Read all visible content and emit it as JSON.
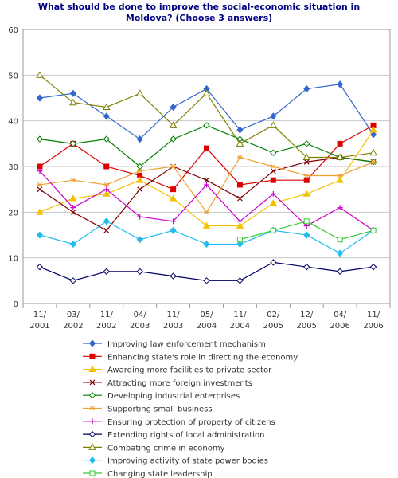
{
  "chart_data": {
    "type": "line",
    "title_line1": "What should be done to improve the social-economic situation in",
    "title_line2": "Moldova? (Choose 3 answers)",
    "xlabel": "",
    "ylabel": "",
    "ylim": [
      0,
      60
    ],
    "yticks": [
      0,
      10,
      20,
      30,
      40,
      50,
      60
    ],
    "grid": true,
    "legend_position": "bottom",
    "categories": [
      [
        "11/",
        "2001"
      ],
      [
        "03/",
        "2002"
      ],
      [
        "11/",
        "2002"
      ],
      [
        "04/",
        "2003"
      ],
      [
        "11/",
        "2003"
      ],
      [
        "05/",
        "2004"
      ],
      [
        "11/",
        "2004"
      ],
      [
        "02/",
        "2005"
      ],
      [
        "12/",
        "2005"
      ],
      [
        "04/",
        "2006"
      ],
      [
        "11/",
        "2006"
      ]
    ],
    "series": [
      {
        "name": "Improving law enforcement mechanism",
        "color": "#3366CC",
        "marker": "diamond-filled",
        "values": [
          45,
          46,
          41,
          36,
          43,
          47,
          38,
          41,
          47,
          48,
          37
        ]
      },
      {
        "name": "Enhancing state's role in directing the economy",
        "color": "#DD0000",
        "marker": "square-filled",
        "values": [
          30,
          35,
          30,
          28,
          25,
          34,
          26,
          27,
          27,
          35,
          39
        ]
      },
      {
        "name": "Awarding more facilities to private sector",
        "color": "#F2C200",
        "marker": "triangle-filled",
        "values": [
          20,
          23,
          24,
          27,
          23,
          17,
          17,
          22,
          24,
          27,
          38
        ]
      },
      {
        "name": "Attracting more foreign investments",
        "color": "#800000",
        "marker": "x",
        "values": [
          25,
          20,
          16,
          25,
          30,
          27,
          23,
          29,
          31,
          32,
          31
        ]
      },
      {
        "name": "Developing industrial enterprises",
        "color": "#008000",
        "marker": "diamond-open",
        "values": [
          36,
          35,
          36,
          30,
          36,
          39,
          36,
          33,
          35,
          32,
          31
        ]
      },
      {
        "name": "Supporting small business",
        "color": "#F0A030",
        "marker": "star",
        "values": [
          26,
          27,
          26,
          29,
          30,
          20,
          32,
          30,
          28,
          28,
          31
        ]
      },
      {
        "name": "Ensuring protection of property of citizens",
        "color": "#CC00CC",
        "marker": "plus",
        "values": [
          29,
          21,
          25,
          19,
          18,
          26,
          18,
          24,
          17,
          21,
          16
        ]
      },
      {
        "name": "Extending rights of local administration",
        "color": "#000066",
        "marker": "diamond-open",
        "values": [
          8,
          5,
          7,
          7,
          6,
          5,
          5,
          9,
          8,
          7,
          8
        ]
      },
      {
        "name": "Combating crime in economy",
        "color": "#808000",
        "marker": "triangle-open",
        "values": [
          50,
          44,
          43,
          46,
          39,
          46,
          35,
          39,
          32,
          32,
          33
        ]
      },
      {
        "name": "Improving activity of state power bodies",
        "color": "#22BBEE",
        "marker": "diamond-filled",
        "values": [
          15,
          13,
          18,
          14,
          16,
          13,
          13,
          16,
          15,
          11,
          16
        ]
      },
      {
        "name": "Changing state leadership",
        "color": "#33CC33",
        "marker": "square-open",
        "values": [
          null,
          null,
          null,
          null,
          null,
          null,
          14,
          16,
          18,
          14,
          16
        ]
      }
    ]
  }
}
